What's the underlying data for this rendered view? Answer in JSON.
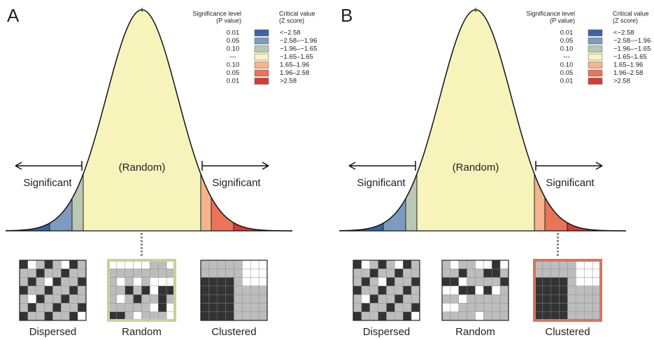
{
  "panels": [
    {
      "letter": "A",
      "legend": {
        "p_header": [
          "Significance level",
          "(P value)"
        ],
        "z_header": [
          "Critical value",
          "(Z score)"
        ],
        "rows": [
          {
            "p": "0.01",
            "z": "<−2.58",
            "color": "#3b63a6"
          },
          {
            "p": "0.05",
            "z": "−2.58–−1.96",
            "color": "#7d9bc1"
          },
          {
            "p": "0.10",
            "z": "−1.96–−1.65",
            "color": "#b9c7b3"
          },
          {
            "p": "---",
            "z": "−1.65–1.65",
            "color": "#f6f4bb"
          },
          {
            "p": "0.10",
            "z": "1.65–1.96",
            "color": "#f5b48b"
          },
          {
            "p": "0.05",
            "z": "1.96–2.58",
            "color": "#e97458"
          },
          {
            "p": "0.01",
            "z": ">2.58",
            "color": "#d63b36"
          }
        ]
      },
      "center_label": "(Random)",
      "left_label": "Significant",
      "right_label": "Significant",
      "maps": [
        "Dispersed",
        "Random",
        "Clustered"
      ],
      "highlight": 1,
      "highlight_color": "#c5d29a"
    },
    {
      "letter": "B",
      "legend": {
        "p_header": [
          "Significance level",
          "(P value)"
        ],
        "z_header": [
          "Critical value",
          "(Z score)"
        ],
        "rows": [
          {
            "p": "0.01",
            "z": "<−2.58",
            "color": "#3b63a6"
          },
          {
            "p": "0.05",
            "z": "−2.58–−1.96",
            "color": "#7d9bc1"
          },
          {
            "p": "0.10",
            "z": "−1.96–−1.65",
            "color": "#b9c7b3"
          },
          {
            "p": "---",
            "z": "−1.65–1.65",
            "color": "#f6f4bb"
          },
          {
            "p": "0.10",
            "z": "1.65–1.96",
            "color": "#f5b48b"
          },
          {
            "p": "0.05",
            "z": "1.96–2.58",
            "color": "#e97458"
          },
          {
            "p": "0.01",
            "z": ">2.58",
            "color": "#d63b36"
          }
        ]
      },
      "center_label": "(Random)",
      "left_label": "Significant",
      "right_label": "Significant",
      "maps": [
        "Dispersed",
        "Random",
        "Clustered"
      ],
      "highlight": 2,
      "highlight_color": "#d9735e"
    }
  ]
}
